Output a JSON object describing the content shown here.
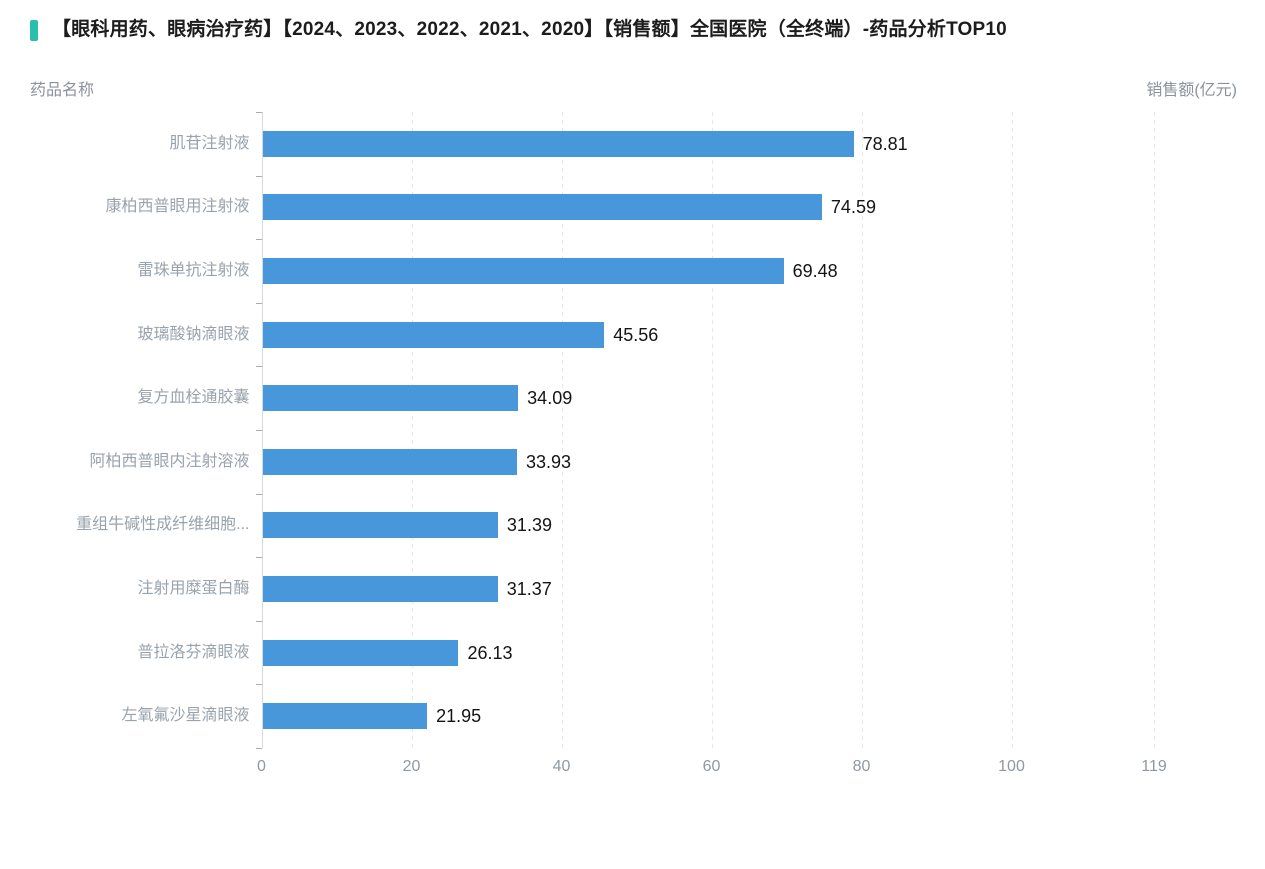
{
  "title": {
    "text": "【眼科用药、眼病治疗药】【2024、2023、2022、2021、2020】【销售额】全国医院（全终端）-药品分析TOP10",
    "marker_color": "#2abfad"
  },
  "axis_headers": {
    "left": "药品名称",
    "right": "销售额(亿元)"
  },
  "chart_data": {
    "type": "bar",
    "orientation": "horizontal",
    "title": "【眼科用药、眼病治疗药】【2024、2023、2022、2021、2020】【销售额】全国医院（全终端）-药品分析TOP10",
    "xlabel": "销售额(亿元)",
    "ylabel": "药品名称",
    "categories": [
      "肌苷注射液",
      "康柏西普眼用注射液",
      "雷珠单抗注射液",
      "玻璃酸钠滴眼液",
      "复方血栓通胶囊",
      "阿柏西普眼内注射溶液",
      "重组牛碱性成纤维细胞...",
      "注射用糜蛋白酶",
      "普拉洛芬滴眼液",
      "左氧氟沙星滴眼液"
    ],
    "values": [
      78.81,
      74.59,
      69.48,
      45.56,
      34.09,
      33.93,
      31.39,
      31.37,
      26.13,
      21.95
    ],
    "value_labels": [
      "78.81",
      "74.59",
      "69.48",
      "45.56",
      "34.09",
      "33.93",
      "31.39",
      "31.37",
      "26.13",
      "21.95"
    ],
    "x_ticks": [
      0,
      20,
      40,
      60,
      80,
      100,
      119
    ],
    "xlim": [
      0,
      130
    ],
    "grid": "vertical-dashed",
    "legend": "none",
    "bar_color": "#4997db",
    "category_label_color": "#99a3ad",
    "value_label_color": "#141414",
    "tick_label_color": "#8f98a1"
  }
}
